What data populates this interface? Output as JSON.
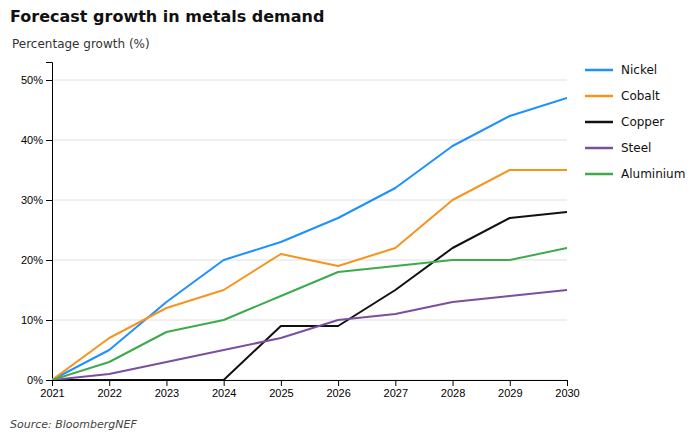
{
  "chart_data": {
    "type": "line",
    "title": "Forecast growth in metals demand",
    "y_label": "Percentage growth (%)",
    "annotations": [
      "Source: BloombergNEF"
    ],
    "x": [
      2021,
      2022,
      2023,
      2024,
      2025,
      2026,
      2027,
      2028,
      2029,
      2030
    ],
    "series": [
      {
        "name": "Nickel",
        "color": "#1E90FF",
        "values": [
          0,
          5,
          13,
          20,
          23,
          27,
          32,
          39,
          44,
          47
        ]
      },
      {
        "name": "Cobalt",
        "color": "#F7941D",
        "values": [
          0,
          7,
          12,
          15,
          21,
          19,
          22,
          30,
          35,
          35
        ]
      },
      {
        "name": "Copper",
        "color": "#111111",
        "values": [
          0,
          0,
          0,
          0,
          9,
          9,
          15,
          22,
          27,
          28
        ]
      },
      {
        "name": "Steel",
        "color": "#7B4F9E",
        "values": [
          0,
          1,
          3,
          5,
          7,
          10,
          11,
          13,
          14,
          15
        ]
      },
      {
        "name": "Aluminium",
        "color": "#3DAA4B",
        "values": [
          0,
          3,
          8,
          10,
          14,
          18,
          19,
          20,
          20,
          22
        ]
      }
    ],
    "xlim": [
      2021,
      2030
    ],
    "xticks": [
      2021,
      2022,
      2023,
      2024,
      2025,
      2026,
      2027,
      2028,
      2029,
      2030
    ],
    "ylim": [
      0,
      53
    ],
    "yticks": [
      {
        "value": 0,
        "label": "0%"
      },
      {
        "value": 10,
        "label": "10%"
      },
      {
        "value": 20,
        "label": "20%"
      },
      {
        "value": 30,
        "label": "30%"
      },
      {
        "value": 40,
        "label": "40%"
      },
      {
        "value": 50,
        "label": "50%"
      }
    ],
    "grid": true,
    "legend": "right"
  }
}
